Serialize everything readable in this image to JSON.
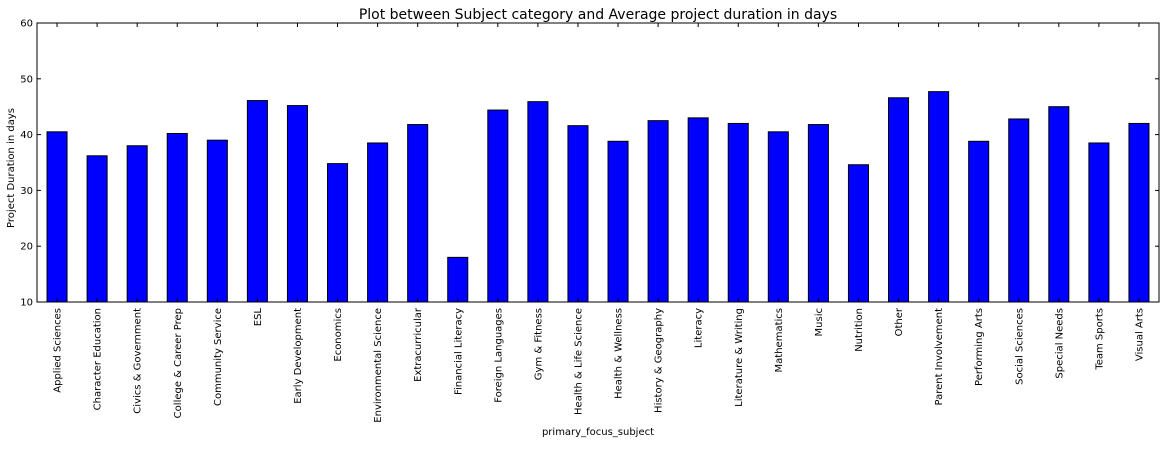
{
  "chart_data": {
    "type": "bar",
    "title": "Plot between Subject category and Average project duration in days",
    "xlabel": "primary_focus_subject",
    "ylabel": "Project Duration in days",
    "ylim": [
      10,
      60
    ],
    "yticks": [
      10,
      20,
      30,
      40,
      50,
      60
    ],
    "grid": false,
    "bar_color": "#0000ff",
    "categories": [
      "Applied Sciences",
      "Character Education",
      "Civics & Government",
      "College & Career Prep",
      "Community Service",
      "ESL",
      "Early Development",
      "Economics",
      "Environmental Science",
      "Extracurricular",
      "Financial Literacy",
      "Foreign Languages",
      "Gym & Fitness",
      "Health & Life Science",
      "Health & Wellness",
      "History & Geography",
      "Literacy",
      "Literature & Writing",
      "Mathematics",
      "Music",
      "Nutrition",
      "Other",
      "Parent Involvement",
      "Performing Arts",
      "Social Sciences",
      "Special Needs",
      "Team Sports",
      "Visual Arts"
    ],
    "values": [
      40.5,
      36.2,
      38.0,
      40.2,
      39.0,
      46.1,
      45.2,
      34.8,
      38.5,
      41.8,
      18.0,
      44.4,
      45.9,
      41.6,
      38.8,
      42.5,
      43.0,
      42.0,
      40.5,
      41.8,
      34.6,
      46.6,
      47.7,
      38.8,
      42.8,
      45.0,
      38.5,
      42.0
    ]
  }
}
